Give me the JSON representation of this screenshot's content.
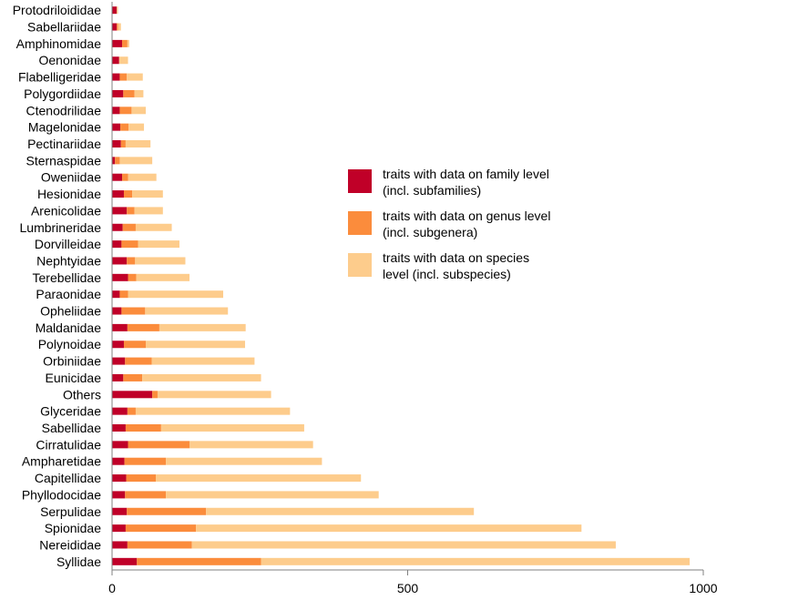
{
  "colors": {
    "family": "#c00028",
    "genus": "#fb8c3c",
    "species": "#fdcc8c",
    "axis": "#808080"
  },
  "legend": [
    {
      "key": "family",
      "line1": "traits with data on family level",
      "line2": "(incl. subfamilies)"
    },
    {
      "key": "genus",
      "line1": "traits with data on genus level",
      "line2": "(incl. subgenera)"
    },
    {
      "key": "species",
      "line1": "traits with data on species",
      "line2": "level (incl. subspecies)"
    }
  ],
  "chart_data": {
    "type": "bar",
    "orientation": "horizontal",
    "stacked": true,
    "xlim": [
      0,
      1000
    ],
    "xticks": [
      "0",
      "500",
      "1000"
    ],
    "grid": false,
    "legend_position": "right",
    "categories": [
      "Protodriloididae",
      "Sabellariidae",
      "Amphinomidae",
      "Oenonidae",
      "Flabelligeridae",
      "Polygordiidae",
      "Ctenodrilidae",
      "Magelonidae",
      "Pectinariidae",
      "Sternaspidae",
      "Oweniidae",
      "Hesionidae",
      "Arenicolidae",
      "Lumbrineridae",
      "Dorvilleidae",
      "Nephtyidae",
      "Terebellidae",
      "Paraonidae",
      "Opheliidae",
      "Maldanidae",
      "Polynoidae",
      "Orbiniidae",
      "Eunicidae",
      "Others",
      "Glyceridae",
      "Sabellidae",
      "Cirratulidae",
      "Ampharetidae",
      "Capitellidae",
      "Phyllodocidae",
      "Serpulidae",
      "Spionidae",
      "Nereididae",
      "Syllidae"
    ],
    "series": [
      {
        "name": "traits with data on family level (incl. subfamilies)",
        "values": [
          8,
          8,
          17,
          12,
          13,
          19,
          13,
          14,
          15,
          5,
          17,
          20,
          25,
          18,
          16,
          25,
          27,
          13,
          16,
          26,
          20,
          22,
          19,
          68,
          26,
          23,
          27,
          21,
          24,
          22,
          25,
          23,
          26,
          42
        ]
      },
      {
        "name": "traits with data on genus level (incl. subgenera)",
        "values": [
          0,
          2,
          9,
          0,
          12,
          19,
          20,
          14,
          8,
          8,
          10,
          14,
          13,
          22,
          28,
          14,
          14,
          14,
          40,
          54,
          37,
          45,
          32,
          9,
          14,
          60,
          104,
          70,
          50,
          69,
          134,
          119,
          109,
          210
        ]
      },
      {
        "name": "traits with data on species level (incl. subspecies)",
        "values": [
          2,
          5,
          3,
          15,
          27,
          15,
          24,
          26,
          42,
          55,
          48,
          52,
          48,
          61,
          70,
          85,
          90,
          161,
          140,
          146,
          168,
          174,
          201,
          192,
          261,
          242,
          209,
          264,
          347,
          360,
          453,
          652,
          717,
          725
        ]
      }
    ]
  }
}
